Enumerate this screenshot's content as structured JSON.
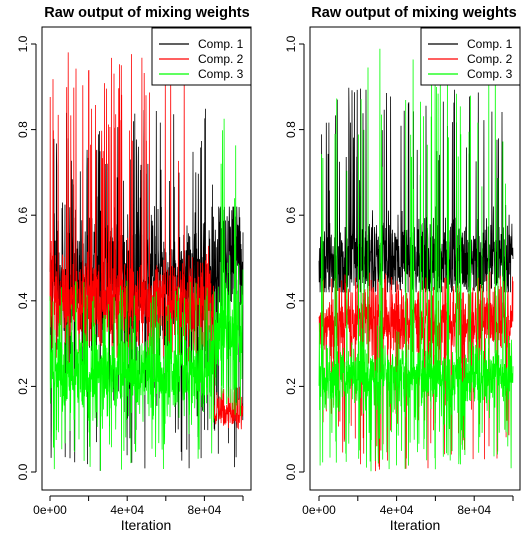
{
  "chart_data": [
    {
      "type": "line",
      "title": "Raw output of mixing weights",
      "xlabel": "Iteration",
      "ylabel": "",
      "xlim": [
        0,
        100000
      ],
      "ylim": [
        0,
        1
      ],
      "x_tick_labels": [
        "0e+00",
        "4e+04",
        "8e+04"
      ],
      "x_tick_values": [
        0,
        20000,
        40000,
        60000,
        80000,
        100000
      ],
      "x_tick_labeled": [
        0,
        40000,
        80000
      ],
      "y_tick_labels": [
        "0.0",
        "0.2",
        "0.4",
        "0.6",
        "0.8",
        "1.0"
      ],
      "y_tick_values": [
        0,
        0.2,
        0.4,
        0.6,
        0.8,
        1.0
      ],
      "legend_position": "top-right",
      "series": [
        {
          "name": "Comp. 1",
          "color": "#000000",
          "segments": [
            {
              "from": 0,
              "to": 85000,
              "mean": 0.45,
              "spread": 0.08,
              "spike_max": 0.85,
              "spike_min": 0.0
            },
            {
              "from": 85000,
              "to": 100000,
              "mean": 0.5,
              "spread": 0.08,
              "spike_max": 0.62,
              "spike_min": 0.0
            }
          ]
        },
        {
          "name": "Comp. 2",
          "color": "#ff0000",
          "segments": [
            {
              "from": 0,
              "to": 85000,
              "mean": 0.4,
              "spread": 0.05,
              "spike_max": 0.99,
              "spike_min": 0.25
            },
            {
              "from": 85000,
              "to": 100000,
              "mean": 0.14,
              "spread": 0.02,
              "spike_max": 0.2,
              "spike_min": 0.1
            }
          ]
        },
        {
          "name": "Comp. 3",
          "color": "#00ff00",
          "segments": [
            {
              "from": 0,
              "to": 85000,
              "mean": 0.23,
              "spread": 0.05,
              "spike_max": 0.45,
              "spike_min": 0.0
            },
            {
              "from": 85000,
              "to": 100000,
              "mean": 0.33,
              "spread": 0.08,
              "spike_max": 0.87,
              "spike_min": 0.13
            }
          ]
        }
      ]
    },
    {
      "type": "line",
      "title": "Raw output of mixing weights",
      "xlabel": "Iteration",
      "ylabel": "",
      "xlim": [
        0,
        100000
      ],
      "ylim": [
        0,
        1
      ],
      "x_tick_labels": [
        "0e+00",
        "4e+04",
        "8e+04"
      ],
      "x_tick_values": [
        0,
        20000,
        40000,
        60000,
        80000,
        100000
      ],
      "x_tick_labeled": [
        0,
        40000,
        80000
      ],
      "y_tick_labels": [
        "0.0",
        "0.2",
        "0.4",
        "0.6",
        "0.8",
        "1.0"
      ],
      "y_tick_values": [
        0,
        0.2,
        0.4,
        0.6,
        0.8,
        1.0
      ],
      "legend_position": "top-right",
      "series": [
        {
          "name": "Comp. 1",
          "color": "#000000",
          "segments": [
            {
              "from": 0,
              "to": 100000,
              "mean": 0.5,
              "spread": 0.05,
              "spike_max": 0.9,
              "spike_min": 0.42
            }
          ]
        },
        {
          "name": "Comp. 2",
          "color": "#ff0000",
          "segments": [
            {
              "from": 0,
              "to": 100000,
              "mean": 0.35,
              "spread": 0.04,
              "spike_max": 0.47,
              "spike_min": 0.0
            }
          ]
        },
        {
          "name": "Comp. 3",
          "color": "#00ff00",
          "segments": [
            {
              "from": 0,
              "to": 100000,
              "mean": 0.22,
              "spread": 0.04,
              "spike_max": 0.99,
              "spike_min": 0.0
            }
          ]
        }
      ]
    }
  ]
}
